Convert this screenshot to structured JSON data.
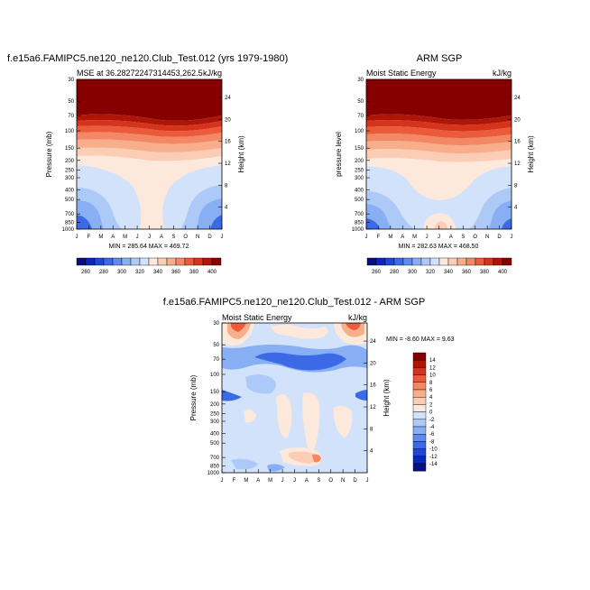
{
  "chart_data": [
    {
      "type": "heatmap",
      "top_title": "f.e15a6.FAMIPC5.ne120_ne120.Club_Test.012 (yrs 1979-1980)",
      "left_label": "MSE at 36.28272247314453,262.5",
      "units": "kJ/kg",
      "ylabel": "Pressure (mb)",
      "ylabel_right": "Height (km)",
      "x_ticks": [
        "J",
        "F",
        "M",
        "A",
        "M",
        "J",
        "J",
        "A",
        "S",
        "O",
        "N",
        "D",
        "J"
      ],
      "y_ticks": [
        "30",
        "50",
        "70",
        "100",
        "150",
        "200",
        "250",
        "300",
        "400",
        "500",
        "700",
        "850",
        "1000"
      ],
      "y_right_ticks": [
        "24",
        "20",
        "16",
        "12",
        "8",
        "4"
      ],
      "min_max": "MIN = 285.64  MAX = 469.72",
      "levels": [
        260,
        270,
        280,
        290,
        300,
        310,
        320,
        330,
        340,
        350,
        360,
        370,
        380,
        390,
        400
      ],
      "level_labels": [
        "260",
        "280",
        "300",
        "320",
        "340",
        "360",
        "380",
        "400"
      ]
    },
    {
      "type": "heatmap",
      "top_title": "ARM SGP",
      "left_label": "Moist Static Energy",
      "units": "kJ/kg",
      "ylabel": "pressure level",
      "ylabel_right": "Height (km)",
      "x_ticks": [
        "J",
        "F",
        "M",
        "A",
        "M",
        "J",
        "J",
        "A",
        "S",
        "O",
        "N",
        "D",
        "J"
      ],
      "y_ticks": [
        "30",
        "50",
        "70",
        "100",
        "150",
        "200",
        "250",
        "300",
        "400",
        "500",
        "700",
        "850",
        "1000"
      ],
      "y_right_ticks": [
        "24",
        "20",
        "16",
        "12",
        "8",
        "4"
      ],
      "min_max": "MIN = 282.63  MAX = 468.50",
      "levels": [
        260,
        270,
        280,
        290,
        300,
        310,
        320,
        330,
        340,
        350,
        360,
        370,
        380,
        390,
        400
      ],
      "level_labels": [
        "260",
        "280",
        "300",
        "320",
        "340",
        "360",
        "380",
        "400"
      ]
    },
    {
      "type": "heatmap",
      "top_title": "f.e15a6.FAMIPC5.ne120_ne120.Club_Test.012 - ARM SGP",
      "left_label": "Moist Static Energy",
      "units": "kJ/kg",
      "ylabel": "Pressure (mb)",
      "ylabel_right": "Height (km)",
      "x_ticks": [
        "J",
        "F",
        "M",
        "A",
        "M",
        "J",
        "J",
        "A",
        "S",
        "O",
        "N",
        "D",
        "J"
      ],
      "y_ticks": [
        "30",
        "50",
        "70",
        "100",
        "150",
        "200",
        "250",
        "300",
        "400",
        "500",
        "700",
        "850",
        "1000"
      ],
      "y_right_ticks": [
        "24",
        "20",
        "16",
        "12",
        "8",
        "4"
      ],
      "min_max": "MIN =  -8.60 MAX =   9.63",
      "levels": [
        -14,
        -12,
        -10,
        -8,
        -6,
        -4,
        -2,
        0,
        2,
        4,
        6,
        8,
        10,
        12,
        14
      ],
      "level_labels": [
        "14",
        "12",
        "10",
        "8",
        "6",
        "4",
        "2",
        "0",
        "-2",
        "-4",
        "-6",
        "-8",
        "-10",
        "-12",
        "-14"
      ]
    }
  ],
  "colors": {
    "abs_scale": [
      "#08107f",
      "#0a27b8",
      "#1c47d8",
      "#3c6ae6",
      "#5f8aef",
      "#88aef4",
      "#adc9f7",
      "#d2e2fb",
      "#fde9dc",
      "#fbcdb4",
      "#f8ae8b",
      "#f48865",
      "#eb5a3a",
      "#d4341c",
      "#b01608",
      "#870000"
    ],
    "diff_scale": [
      "#870000",
      "#b01608",
      "#d4341c",
      "#eb5a3a",
      "#f48865",
      "#f8ae8b",
      "#fbcdb4",
      "#fde9dc",
      "#d2e2fb",
      "#adc9f7",
      "#88aef4",
      "#5f8aef",
      "#3c6ae6",
      "#1c47d8",
      "#0a27b8",
      "#08107f"
    ]
  }
}
